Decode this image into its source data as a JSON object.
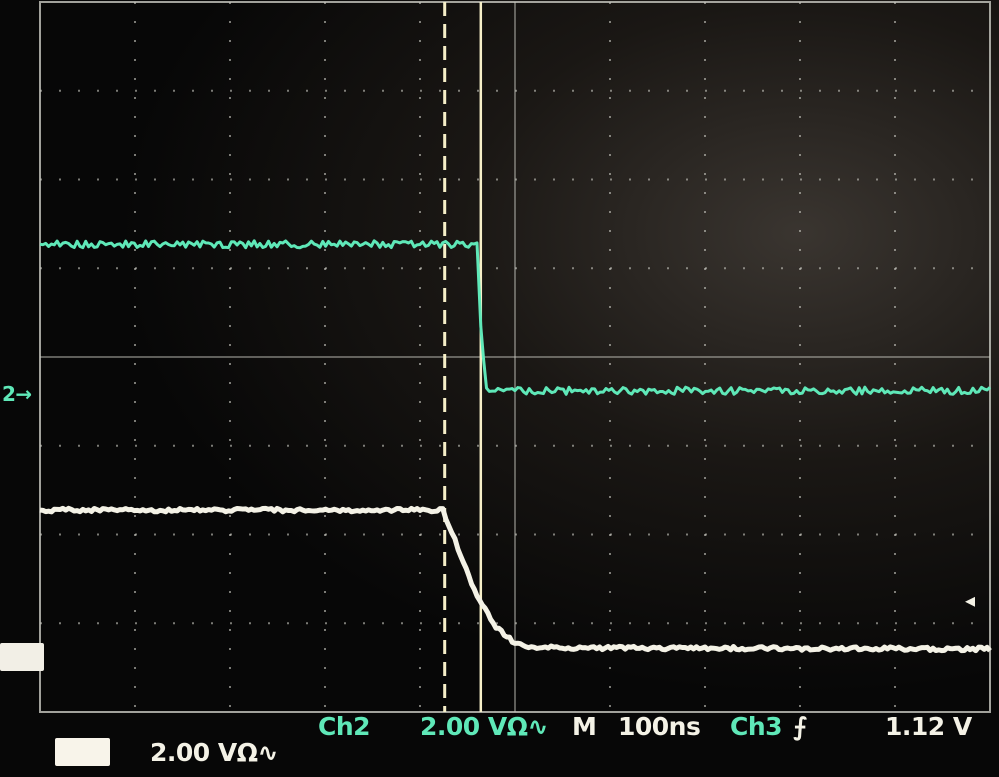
{
  "status_bar": {
    "ch2_label": "Ch2",
    "ch2_scale": "2.00 VΩ∿",
    "timebase_prefix": "M",
    "timebase": "100ns",
    "trigger_source": "Ch3",
    "trigger_slope_icon": "rising-edge-icon",
    "trigger_level": "1.12 V",
    "ch3_scale": "2.00 VΩ∿"
  },
  "markers": {
    "ch2_ground": "2→"
  },
  "colors": {
    "ch2": "#5fe8b8",
    "ch3": "#f4f2e6",
    "grid": "#c8c8c0",
    "cursor": "#f6efc8"
  },
  "chart_data": {
    "type": "line",
    "grid": true,
    "x_divisions": 10,
    "y_divisions": 8,
    "xlim_ns": [
      -500,
      500
    ],
    "ylim_div": [
      -4,
      4
    ],
    "cursors_ns": [
      -74,
      -36
    ],
    "series": [
      {
        "name": "Ch2",
        "volts_per_div": 2.0,
        "ground_div": -0.43,
        "x": [
          -500,
          -40,
          -36,
          -30,
          500
        ],
        "y": [
          3.4,
          3.4,
          1.5,
          0.1,
          0.1
        ]
      },
      {
        "name": "Ch3",
        "volts_per_div": 2.0,
        "ground_div": -3.35,
        "x": [
          -500,
          -76,
          -60,
          -40,
          -20,
          0,
          20,
          500
        ],
        "y": [
          3.25,
          3.25,
          2.4,
          1.3,
          0.6,
          0.25,
          0.15,
          0.12
        ]
      }
    ]
  }
}
